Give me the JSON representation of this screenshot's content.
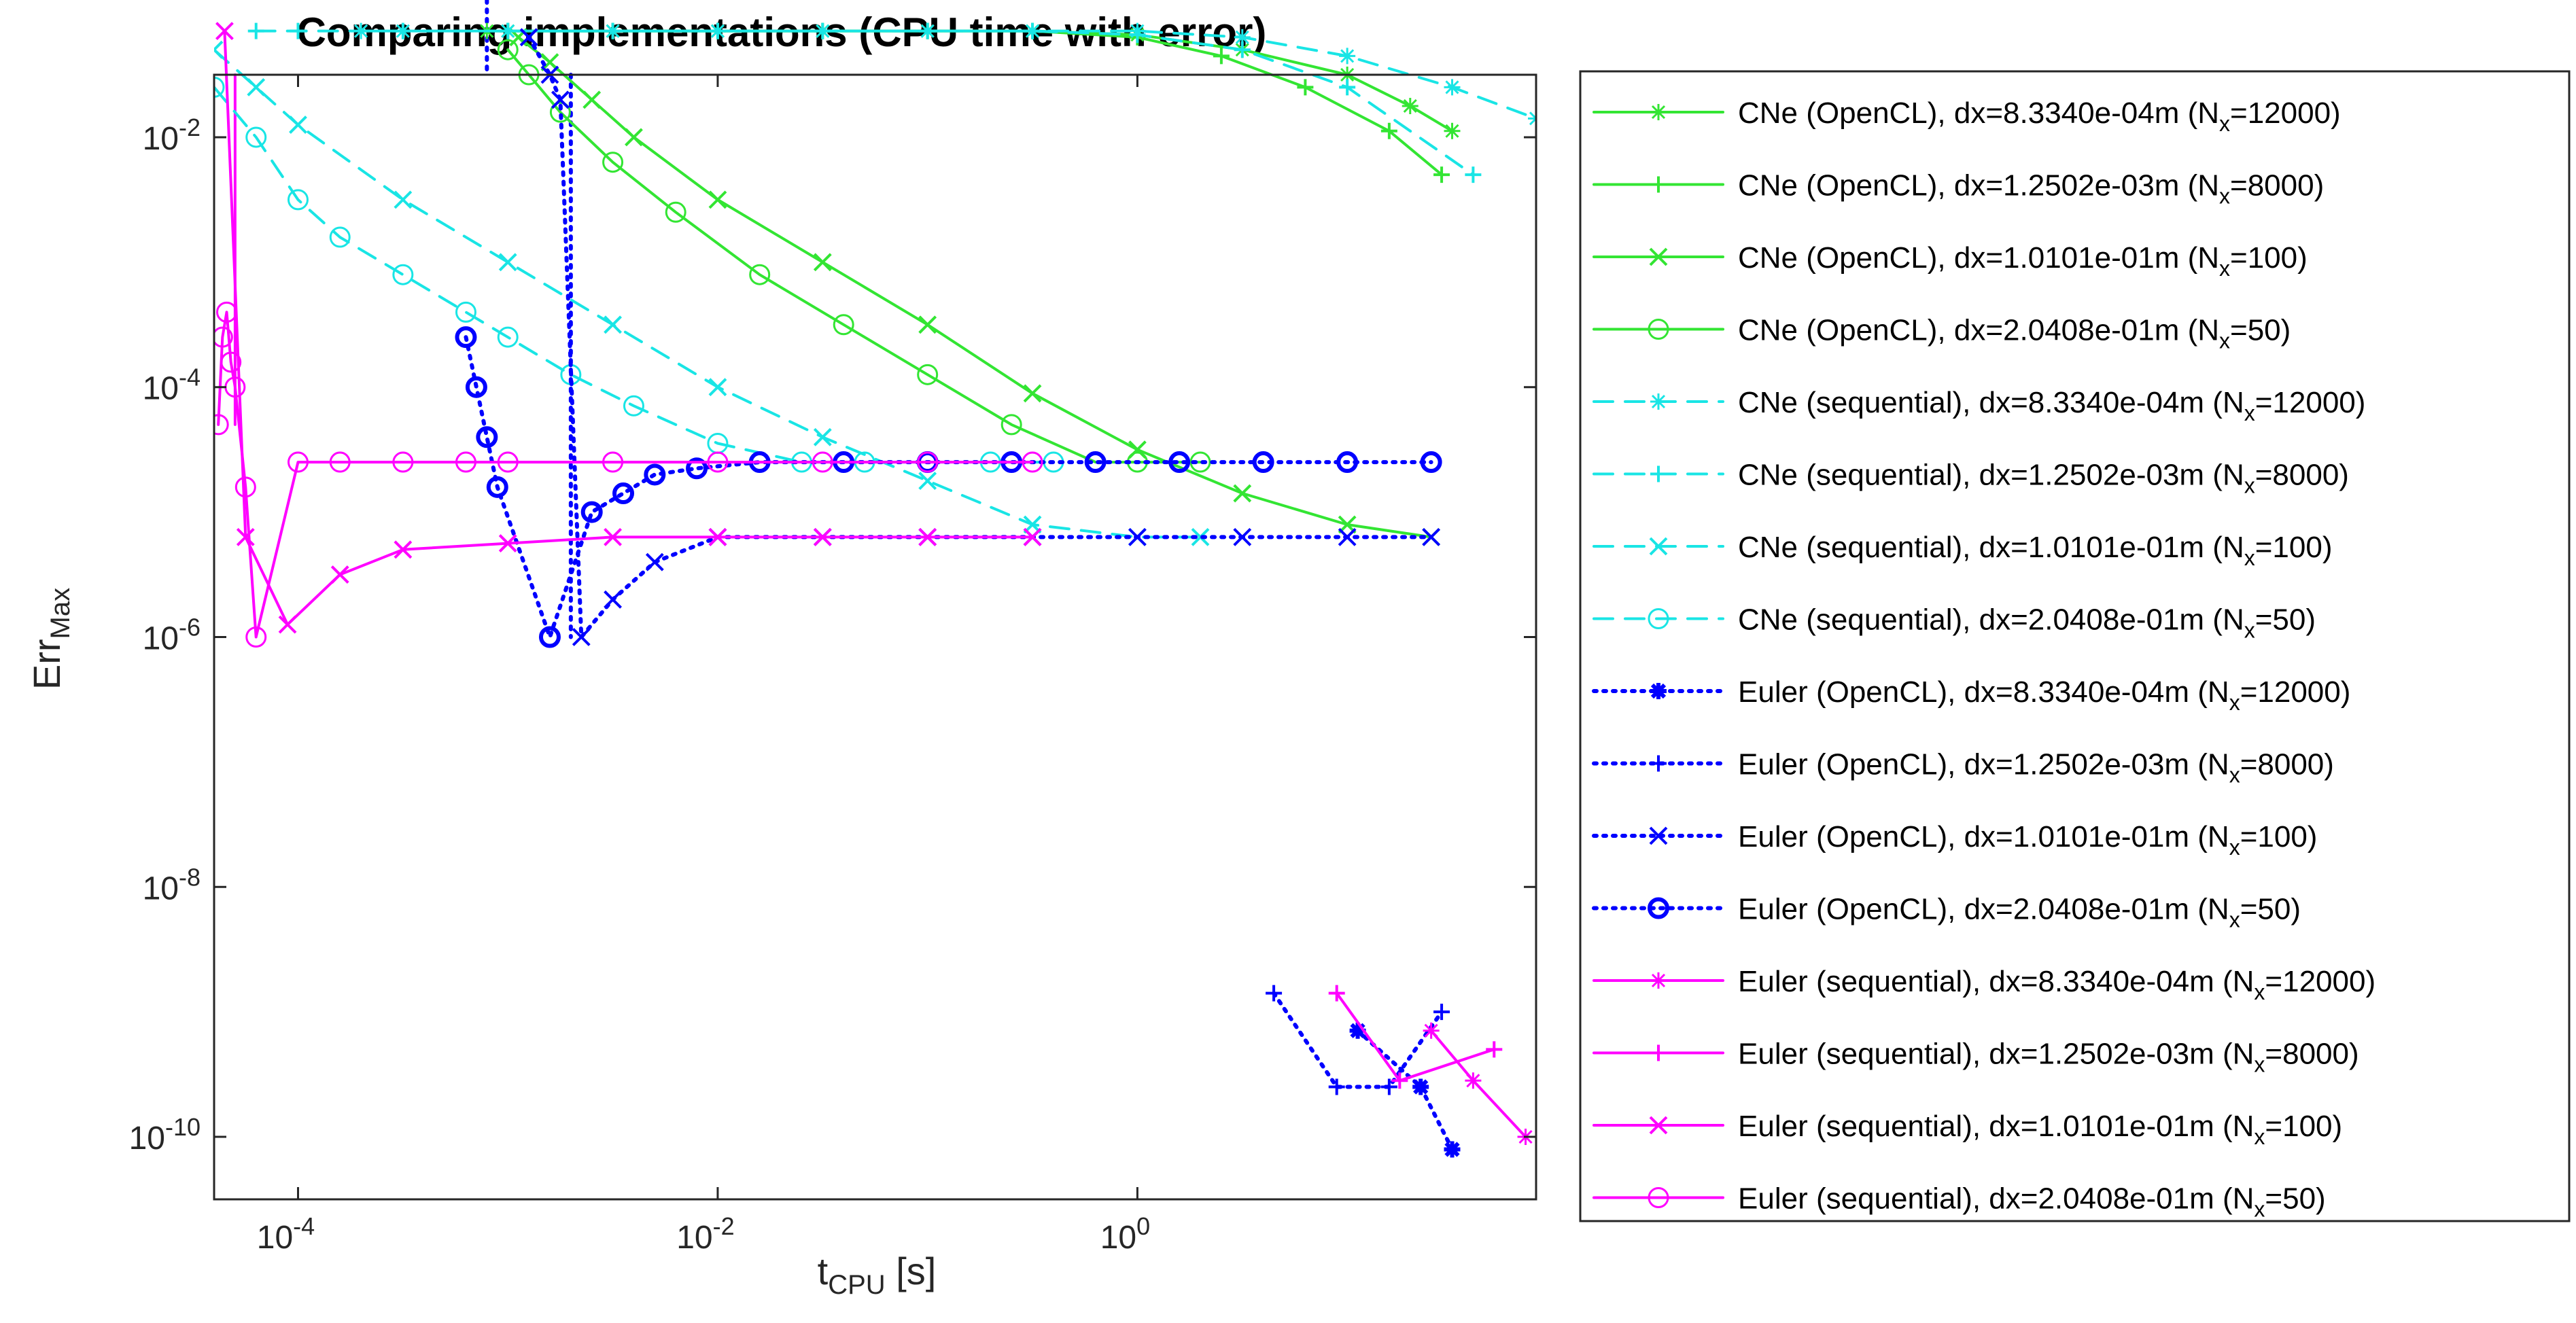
{
  "chart_data": {
    "type": "line",
    "title": "Comparing implementations (CPU time with error)",
    "xlabel": {
      "main": "t",
      "sub": "CPU",
      "unit": " [s]"
    },
    "ylabel": {
      "main": "Err",
      "sub": "Max"
    },
    "xscale": "log",
    "yscale": "log",
    "xlim_log10": [
      -4.4,
      1.9
    ],
    "ylim_log10": [
      -10.5,
      -1.5
    ],
    "xticks": [
      {
        "exp": -4,
        "base": "10",
        "sup": "-4"
      },
      {
        "exp": -2,
        "base": "10",
        "sup": "-2"
      },
      {
        "exp": 0,
        "base": "10",
        "sup": "0"
      }
    ],
    "yticks": [
      {
        "exp": -10,
        "base": "10",
        "sup": "-10"
      },
      {
        "exp": -8,
        "base": "10",
        "sup": "-8"
      },
      {
        "exp": -6,
        "base": "10",
        "sup": "-6"
      },
      {
        "exp": -4,
        "base": "10",
        "sup": "-4"
      },
      {
        "exp": -2,
        "base": "10",
        "sup": "-2"
      }
    ],
    "legend_position": "outside-right",
    "series": [
      {
        "name": "CNe (OpenCL), dx=8.3340e-04m (Nx=12000)",
        "label_pre": "CNe (OpenCL), dx=8.3340e-04m (N",
        "label_sub": "x",
        "label_post": "=12000)",
        "color": "#33e533",
        "dash": "solid",
        "marker": "star",
        "x_log": [
          -3.1,
          -3.0,
          -2.5,
          -2.0,
          -1.5,
          -1.0,
          -0.5,
          0.0,
          0.5,
          1.0,
          1.3,
          1.5
        ],
        "y_log": [
          -1.15,
          -1.15,
          -1.15,
          -1.15,
          -1.15,
          -1.15,
          -1.15,
          -1.18,
          -1.3,
          -1.5,
          -1.75,
          -1.95
        ]
      },
      {
        "name": "CNe (OpenCL), dx=1.2502e-03m (Nx=8000)",
        "label_pre": "CNe (OpenCL), dx=1.2502e-03m (N",
        "label_sub": "x",
        "label_post": "=8000)",
        "color": "#33e533",
        "dash": "solid",
        "marker": "plus",
        "x_log": [
          -3.0,
          -2.5,
          -2.0,
          -1.5,
          -1.0,
          -0.5,
          0.0,
          0.4,
          0.8,
          1.2,
          1.45
        ],
        "y_log": [
          -1.15,
          -1.15,
          -1.15,
          -1.15,
          -1.15,
          -1.15,
          -1.2,
          -1.35,
          -1.6,
          -1.95,
          -2.3
        ]
      },
      {
        "name": "CNe (OpenCL), dx=1.0101e-01m (Nx=100)",
        "label_pre": "CNe (OpenCL), dx=1.0101e-01m (N",
        "label_sub": "x",
        "label_post": "=100)",
        "color": "#33e533",
        "dash": "solid",
        "marker": "x",
        "x_log": [
          -2.95,
          -2.8,
          -2.6,
          -2.4,
          -2.0,
          -1.5,
          -1.0,
          -0.5,
          0.0,
          0.5,
          1.0,
          1.4
        ],
        "y_log": [
          -1.2,
          -1.4,
          -1.7,
          -2.0,
          -2.5,
          -3.0,
          -3.5,
          -4.05,
          -4.5,
          -4.85,
          -5.1,
          -5.2
        ]
      },
      {
        "name": "CNe (OpenCL), dx=2.0408e-01m (Nx=50)",
        "label_pre": "CNe (OpenCL), dx=2.0408e-01m (N",
        "label_sub": "x",
        "label_post": "=50)",
        "color": "#33e533",
        "dash": "solid",
        "marker": "circle",
        "x_log": [
          -3.0,
          -2.9,
          -2.75,
          -2.5,
          -2.2,
          -1.8,
          -1.4,
          -1.0,
          -0.6,
          -0.2,
          0.0,
          0.3
        ],
        "y_log": [
          -1.3,
          -1.5,
          -1.8,
          -2.2,
          -2.6,
          -3.1,
          -3.5,
          -3.9,
          -4.3,
          -4.6,
          -4.6,
          -4.6
        ]
      },
      {
        "name": "CNe (sequential), dx=8.3340e-04m (Nx=12000)",
        "label_pre": "CNe (sequential), dx=8.3340e-04m (N",
        "label_sub": "x",
        "label_post": "=12000)",
        "color": "#19e5e5",
        "dash": "dashed",
        "marker": "star",
        "x_log": [
          -3.7,
          -3.5,
          -3.0,
          -2.5,
          -2.0,
          -1.5,
          -1.0,
          -0.5,
          0.0,
          0.5,
          1.0,
          1.5,
          1.9
        ],
        "y_log": [
          -1.15,
          -1.15,
          -1.15,
          -1.15,
          -1.15,
          -1.15,
          -1.15,
          -1.15,
          -1.15,
          -1.2,
          -1.35,
          -1.6,
          -1.85
        ]
      },
      {
        "name": "CNe (sequential), dx=1.2502e-03m (Nx=8000)",
        "label_pre": "CNe (sequential), dx=1.2502e-03m (N",
        "label_sub": "x",
        "label_post": "=8000)",
        "color": "#19e5e5",
        "dash": "dashed",
        "marker": "plus",
        "x_log": [
          -4.2,
          -4.0,
          -3.5,
          -3.0,
          -2.5,
          -2.0,
          -1.5,
          -1.0,
          -0.5,
          0.0,
          0.5,
          1.0,
          1.6
        ],
        "y_log": [
          -1.15,
          -1.15,
          -1.15,
          -1.15,
          -1.15,
          -1.15,
          -1.15,
          -1.15,
          -1.15,
          -1.18,
          -1.3,
          -1.6,
          -2.3
        ]
      },
      {
        "name": "CNe (sequential), dx=1.0101e-01m (Nx=100)",
        "label_pre": "CNe (sequential), dx=1.0101e-01m (N",
        "label_sub": "x",
        "label_post": "=100)",
        "color": "#19e5e5",
        "dash": "dashed",
        "marker": "x",
        "x_log": [
          -4.4,
          -4.2,
          -4.0,
          -3.5,
          -3.0,
          -2.5,
          -2.0,
          -1.5,
          -1.0,
          -0.5,
          0.0,
          0.3
        ],
        "y_log": [
          -1.3,
          -1.6,
          -1.9,
          -2.5,
          -3.0,
          -3.5,
          -4.0,
          -4.4,
          -4.75,
          -5.1,
          -5.2,
          -5.2
        ]
      },
      {
        "name": "CNe (sequential), dx=2.0408e-01m (Nx=50)",
        "label_pre": "CNe (sequential), dx=2.0408e-01m (N",
        "label_sub": "x",
        "label_post": "=50)",
        "color": "#19e5e5",
        "dash": "dashed",
        "marker": "circle",
        "x_log": [
          -4.4,
          -4.2,
          -4.0,
          -3.8,
          -3.5,
          -3.2,
          -3.0,
          -2.7,
          -2.4,
          -2.0,
          -1.6,
          -1.3,
          -1.0,
          -0.7,
          -0.4
        ],
        "y_log": [
          -1.6,
          -2.0,
          -2.5,
          -2.8,
          -3.1,
          -3.4,
          -3.6,
          -3.9,
          -4.15,
          -4.45,
          -4.6,
          -4.6,
          -4.6,
          -4.6,
          -4.6
        ]
      },
      {
        "name": "Euler (OpenCL), dx=8.3340e-04m (Nx=12000)",
        "label_pre": "Euler (OpenCL), dx=8.3340e-04m (N",
        "label_sub": "x",
        "label_post": "=12000)",
        "color": "#0000ff",
        "dash": "dotted",
        "marker": "filled-star",
        "x_log": [
          1.05,
          1.35,
          1.5
        ],
        "y_log": [
          -9.15,
          -9.6,
          -10.1
        ]
      },
      {
        "name": "Euler (OpenCL), dx=1.2502e-03m (Nx=8000)",
        "label_pre": "Euler (OpenCL), dx=1.2502e-03m (N",
        "label_sub": "x",
        "label_post": "=8000)",
        "color": "#0000ff",
        "dash": "dotted",
        "marker": "plus",
        "x_log": [
          0.65,
          0.95,
          1.2,
          1.45
        ],
        "y_log": [
          -8.85,
          -9.6,
          -9.6,
          -9.0
        ]
      },
      {
        "name": "Euler (OpenCL), dx=1.0101e-01m (Nx=100)",
        "label_pre": "Euler (OpenCL), dx=1.0101e-01m (N",
        "label_sub": "x",
        "label_post": "=100)",
        "color": "#0000ff",
        "dash": "dotted",
        "marker": "x",
        "x_log": [
          -2.9,
          -2.8,
          -2.75,
          -2.65,
          -2.5,
          -2.3,
          -2.0,
          -1.5,
          -1.0,
          -0.5,
          0.0,
          0.5,
          1.0,
          1.4
        ],
        "y_log": [
          -1.2,
          -1.5,
          -1.7,
          -6.0,
          -5.7,
          -5.4,
          -5.2,
          -5.2,
          -5.2,
          -5.2,
          -5.2,
          -5.2,
          -5.2,
          -5.2
        ]
      },
      {
        "name": "Euler (OpenCL), dx=2.0408e-01m (Nx=50)",
        "label_pre": "Euler (OpenCL), dx=2.0408e-01m (N",
        "label_sub": "x",
        "label_post": "=50)",
        "color": "#0000ff",
        "dash": "dotted",
        "marker": "thick-circle",
        "x_log": [
          -3.2,
          -3.15,
          -3.1,
          -3.05,
          -2.8,
          -2.6,
          -2.45,
          -2.3,
          -2.1,
          -1.8,
          -1.4,
          -1.0,
          -0.6,
          -0.2,
          0.2,
          0.6,
          1.0,
          1.4
        ],
        "y_log": [
          -3.6,
          -4.0,
          -4.4,
          -4.8,
          -6.0,
          -5.0,
          -4.85,
          -4.7,
          -4.65,
          -4.6,
          -4.6,
          -4.6,
          -4.6,
          -4.6,
          -4.6,
          -4.6,
          -4.6,
          -4.6
        ]
      },
      {
        "name": "Euler (sequential), dx=8.3340e-04m (Nx=12000)",
        "label_pre": "Euler (sequential), dx=8.3340e-04m (N",
        "label_sub": "x",
        "label_post": "=12000)",
        "color": "#ff00ff",
        "dash": "solid",
        "marker": "star",
        "x_log": [
          1.4,
          1.6,
          1.85
        ],
        "y_log": [
          -9.15,
          -9.55,
          -10.0
        ]
      },
      {
        "name": "Euler (sequential), dx=1.2502e-03m (Nx=8000)",
        "label_pre": "Euler (sequential), dx=1.2502e-03m (N",
        "label_sub": "x",
        "label_post": "=8000)",
        "color": "#ff00ff",
        "dash": "solid",
        "marker": "plus",
        "x_log": [
          0.95,
          1.25,
          1.7
        ],
        "y_log": [
          -8.85,
          -9.55,
          -9.3
        ]
      },
      {
        "name": "Euler (sequential), dx=1.0101e-01m (Nx=100)",
        "label_pre": "Euler (sequential), dx=1.0101e-01m (N",
        "label_sub": "x",
        "label_post": "=100)",
        "color": "#ff00ff",
        "dash": "solid",
        "marker": "x",
        "x_log": [
          -4.35,
          -4.25,
          -4.05,
          -3.8,
          -3.5,
          -3.0,
          -2.5,
          -2.0,
          -1.5,
          -1.0,
          -0.5
        ],
        "y_log": [
          -1.15,
          -5.2,
          -5.9,
          -5.5,
          -5.3,
          -5.25,
          -5.2,
          -5.2,
          -5.2,
          -5.2,
          -5.2
        ]
      },
      {
        "name": "Euler (sequential), dx=2.0408e-01m (Nx=50)",
        "label_pre": "Euler (sequential), dx=2.0408e-01m (N",
        "label_sub": "x",
        "label_post": "=50)",
        "color": "#ff00ff",
        "dash": "solid",
        "marker": "circle",
        "x_log": [
          -4.38,
          -4.36,
          -4.34,
          -4.32,
          -4.3,
          -4.25,
          -4.2,
          -4.0,
          -3.8,
          -3.5,
          -3.2,
          -3.0,
          -2.5,
          -2.0,
          -1.5,
          -1.0,
          -0.5
        ],
        "y_log": [
          -4.3,
          -3.6,
          -3.4,
          -3.8,
          -4.0,
          -4.8,
          -6.0,
          -4.6,
          -4.6,
          -4.6,
          -4.6,
          -4.6,
          -4.6,
          -4.6,
          -4.6,
          -4.6,
          -4.6
        ]
      }
    ],
    "vertical_lines": [
      {
        "series": "Euler (OpenCL) 12000",
        "color": "#0000ff",
        "dash": "dotted",
        "x_log": -3.1,
        "y_from_log": -1.15,
        "y_to_log": -1.5
      },
      {
        "series": "Euler (OpenCL) 8000",
        "color": "#0000ff",
        "dash": "dotted",
        "x_log": -2.7,
        "y_from_log": -1.5,
        "y_to_log": -6.0
      },
      {
        "series": "Euler (sequential) 12000",
        "color": "#ff00ff",
        "dash": "solid",
        "x_log": -4.3,
        "y_from_log": -1.5,
        "y_to_log": -4.3
      }
    ]
  }
}
